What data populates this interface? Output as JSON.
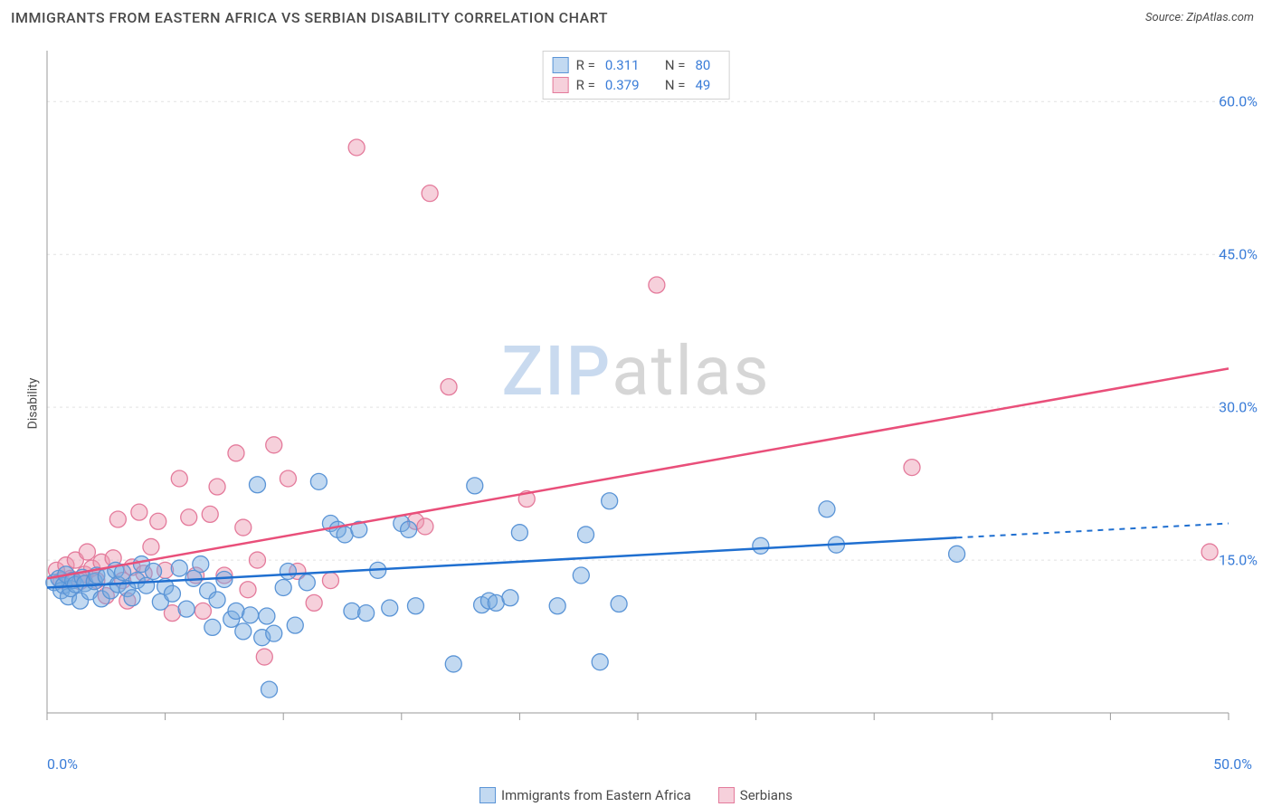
{
  "header": {
    "title": "IMMIGRANTS FROM EASTERN AFRICA VS SERBIAN DISABILITY CORRELATION CHART",
    "source_label": "Source: ZipAtlas.com"
  },
  "axes": {
    "y_label": "Disability",
    "x_min": 0,
    "x_max": 50,
    "y_min": 0,
    "y_max": 65,
    "x_ticks": [
      0,
      50
    ],
    "x_tick_labels": [
      "0.0%",
      "50.0%"
    ],
    "y_ticks": [
      15,
      30,
      45,
      60
    ],
    "y_tick_labels": [
      "15.0%",
      "30.0%",
      "45.0%",
      "60.0%"
    ],
    "grid_color": "#e2e2e2",
    "axis_color": "#9a9a9a",
    "tick_label_color": "#3b7dd8",
    "tick_label_fontsize": 16
  },
  "watermark": {
    "part1": "ZIP",
    "part2": "atlas"
  },
  "series": [
    {
      "key": "eastern_africa",
      "name": "Immigrants from Eastern Africa",
      "fill": "rgba(120,170,225,0.45)",
      "stroke": "#5a94d6",
      "line_color": "#1f6fd0",
      "marker_r": 9,
      "R": "0.311",
      "N": "80",
      "trend": {
        "x1": 0,
        "y1": 12.3,
        "x2": 38.5,
        "y2": 17.2,
        "dash_x2": 50,
        "dash_y2": 18.6
      },
      "points": [
        [
          0.3,
          12.8
        ],
        [
          0.5,
          13.2
        ],
        [
          0.6,
          12.0
        ],
        [
          0.7,
          12.5
        ],
        [
          0.8,
          13.6
        ],
        [
          0.9,
          11.4
        ],
        [
          1.0,
          12.2
        ],
        [
          1.1,
          13.0
        ],
        [
          1.2,
          12.6
        ],
        [
          1.4,
          11.0
        ],
        [
          1.5,
          13.3
        ],
        [
          1.6,
          12.7
        ],
        [
          1.8,
          11.9
        ],
        [
          2.0,
          12.9
        ],
        [
          2.1,
          13.5
        ],
        [
          2.3,
          11.2
        ],
        [
          2.5,
          13.4
        ],
        [
          2.7,
          12.0
        ],
        [
          2.9,
          14.0
        ],
        [
          3.0,
          12.6
        ],
        [
          3.2,
          13.8
        ],
        [
          3.4,
          12.2
        ],
        [
          3.6,
          11.3
        ],
        [
          3.8,
          13.0
        ],
        [
          4.0,
          14.6
        ],
        [
          4.2,
          12.5
        ],
        [
          4.5,
          13.9
        ],
        [
          4.8,
          10.9
        ],
        [
          5.0,
          12.4
        ],
        [
          5.3,
          11.7
        ],
        [
          5.6,
          14.2
        ],
        [
          5.9,
          10.2
        ],
        [
          6.2,
          13.2
        ],
        [
          6.5,
          14.6
        ],
        [
          6.8,
          12.0
        ],
        [
          7.0,
          8.4
        ],
        [
          7.2,
          11.1
        ],
        [
          7.5,
          13.1
        ],
        [
          7.8,
          9.2
        ],
        [
          8.0,
          10.0
        ],
        [
          8.3,
          8.0
        ],
        [
          8.6,
          9.6
        ],
        [
          8.9,
          22.4
        ],
        [
          9.1,
          7.4
        ],
        [
          9.3,
          9.5
        ],
        [
          9.4,
          2.3
        ],
        [
          9.6,
          7.8
        ],
        [
          10.0,
          12.3
        ],
        [
          10.2,
          13.9
        ],
        [
          10.5,
          8.6
        ],
        [
          11.0,
          12.8
        ],
        [
          11.5,
          22.7
        ],
        [
          12.0,
          18.6
        ],
        [
          12.3,
          18.0
        ],
        [
          12.6,
          17.5
        ],
        [
          12.9,
          10.0
        ],
        [
          13.2,
          18.0
        ],
        [
          13.5,
          9.8
        ],
        [
          14.0,
          14.0
        ],
        [
          14.5,
          10.3
        ],
        [
          15.0,
          18.6
        ],
        [
          15.3,
          18.0
        ],
        [
          15.6,
          10.5
        ],
        [
          17.2,
          4.8
        ],
        [
          18.1,
          22.3
        ],
        [
          18.4,
          10.6
        ],
        [
          18.7,
          11.0
        ],
        [
          19.0,
          10.8
        ],
        [
          19.6,
          11.3
        ],
        [
          20.0,
          17.7
        ],
        [
          21.6,
          10.5
        ],
        [
          22.6,
          13.5
        ],
        [
          22.8,
          17.5
        ],
        [
          23.4,
          5.0
        ],
        [
          23.8,
          20.8
        ],
        [
          24.2,
          10.7
        ],
        [
          30.2,
          16.4
        ],
        [
          33.0,
          20.0
        ],
        [
          33.4,
          16.5
        ],
        [
          38.5,
          15.6
        ]
      ]
    },
    {
      "key": "serbians",
      "name": "Serbians",
      "fill": "rgba(235,150,175,0.45)",
      "stroke": "#e47a9b",
      "line_color": "#e94f7a",
      "marker_r": 9,
      "R": "0.379",
      "N": "49",
      "trend": {
        "x1": 0,
        "y1": 13.2,
        "x2": 50,
        "y2": 33.8
      },
      "points": [
        [
          0.4,
          14.0
        ],
        [
          0.6,
          13.0
        ],
        [
          0.8,
          14.5
        ],
        [
          1.0,
          13.2
        ],
        [
          1.2,
          15.0
        ],
        [
          1.4,
          12.9
        ],
        [
          1.6,
          13.6
        ],
        [
          1.7,
          15.8
        ],
        [
          1.9,
          14.2
        ],
        [
          2.1,
          13.0
        ],
        [
          2.3,
          14.8
        ],
        [
          2.5,
          11.5
        ],
        [
          2.8,
          15.2
        ],
        [
          3.0,
          19.0
        ],
        [
          3.2,
          13.0
        ],
        [
          3.4,
          11.0
        ],
        [
          3.6,
          14.3
        ],
        [
          3.9,
          19.7
        ],
        [
          4.1,
          13.7
        ],
        [
          4.4,
          16.3
        ],
        [
          4.7,
          18.8
        ],
        [
          5.0,
          14.0
        ],
        [
          5.3,
          9.8
        ],
        [
          5.6,
          23.0
        ],
        [
          6.0,
          19.2
        ],
        [
          6.3,
          13.5
        ],
        [
          6.6,
          10.0
        ],
        [
          6.9,
          19.5
        ],
        [
          7.2,
          22.2
        ],
        [
          7.5,
          13.5
        ],
        [
          8.0,
          25.5
        ],
        [
          8.3,
          18.2
        ],
        [
          8.5,
          12.1
        ],
        [
          8.9,
          15.0
        ],
        [
          9.2,
          5.5
        ],
        [
          9.6,
          26.3
        ],
        [
          10.2,
          23.0
        ],
        [
          10.6,
          13.9
        ],
        [
          11.3,
          10.8
        ],
        [
          12.0,
          13.0
        ],
        [
          13.1,
          55.5
        ],
        [
          15.6,
          18.8
        ],
        [
          16.0,
          18.3
        ],
        [
          16.2,
          51.0
        ],
        [
          17.0,
          32.0
        ],
        [
          20.3,
          21.0
        ],
        [
          25.8,
          42.0
        ],
        [
          36.6,
          24.1
        ],
        [
          49.2,
          15.8
        ]
      ]
    }
  ],
  "bottom_legend": [
    {
      "name": "Immigrants from Eastern Africa",
      "fill": "rgba(120,170,225,0.45)",
      "stroke": "#5a94d6"
    },
    {
      "name": "Serbians",
      "fill": "rgba(235,150,175,0.45)",
      "stroke": "#e47a9b"
    }
  ]
}
